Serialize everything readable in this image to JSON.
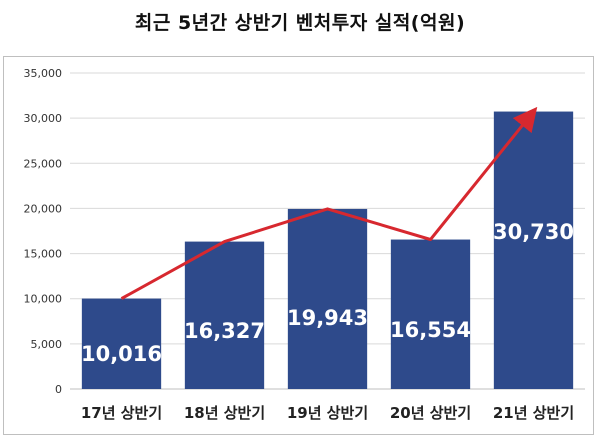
{
  "title": "최근 5년간 상반기 벤처투자 실적(억원)",
  "chart_data": {
    "type": "bar",
    "overlay": "line",
    "categories": [
      "17년 상반기",
      "18년 상반기",
      "19년 상반기",
      "20년 상반기",
      "21년 상반기"
    ],
    "values": [
      10016,
      16327,
      19943,
      16554,
      30730
    ],
    "data_labels": [
      "10,016",
      "16,327",
      "19,943",
      "16,554",
      "30,730"
    ],
    "ylim": [
      0,
      35000
    ],
    "yticks": [
      0,
      5000,
      10000,
      15000,
      20000,
      25000,
      30000,
      35000
    ],
    "ytick_labels": [
      "0",
      "5,000",
      "10,000",
      "15,000",
      "20,000",
      "25,000",
      "30,000",
      "35,000"
    ],
    "grid": true,
    "bar_color": "#2e4a8b",
    "line_color": "#d7282f",
    "line_arrow": true
  }
}
